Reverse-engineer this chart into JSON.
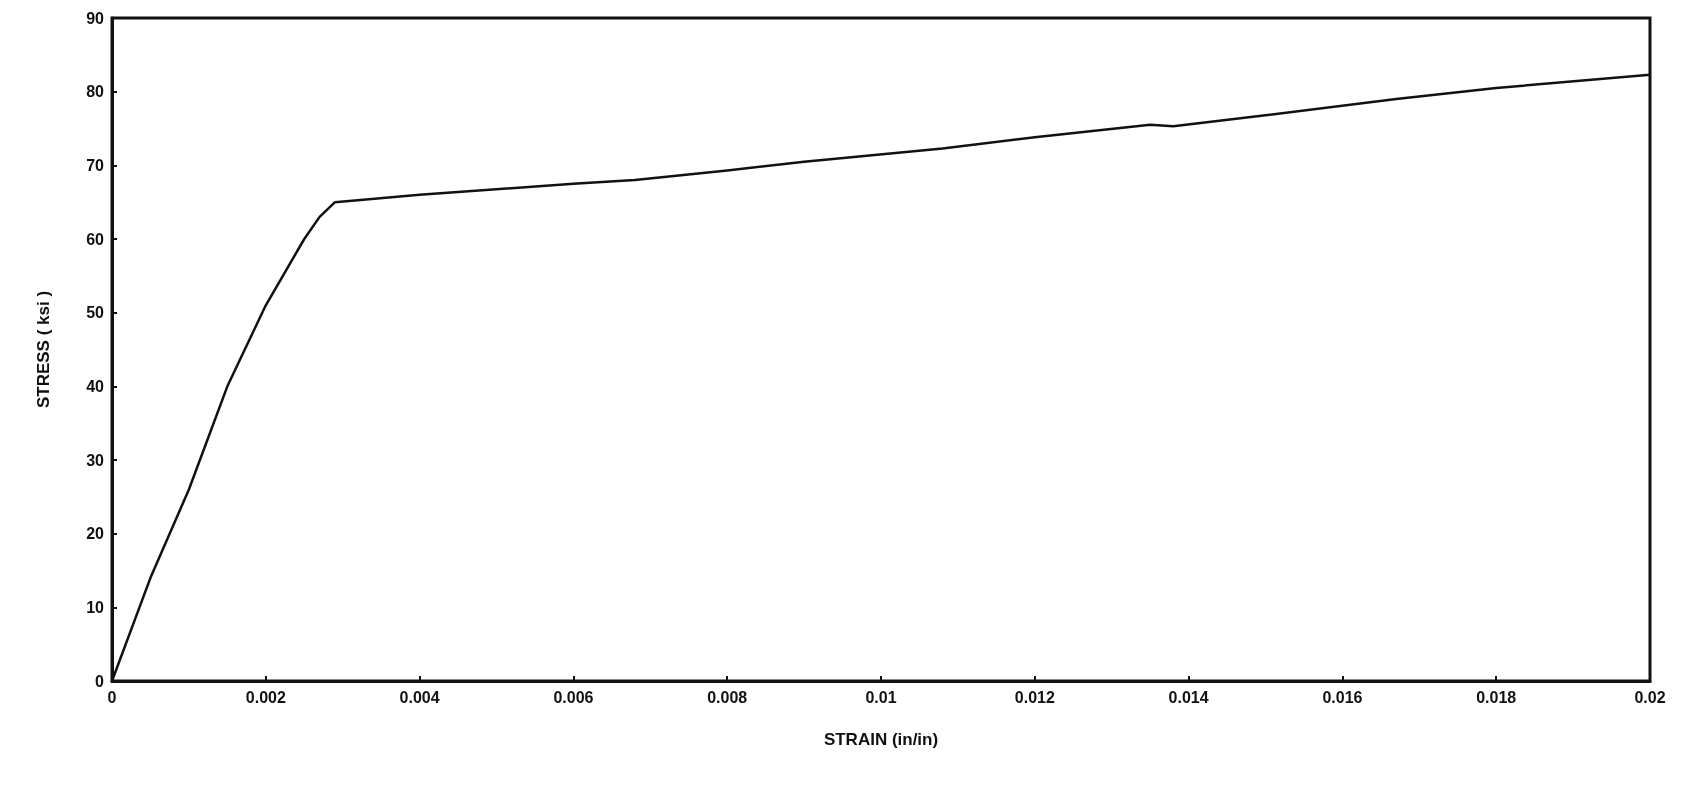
{
  "chart_data": {
    "type": "line",
    "xlabel": "STRAIN (in/in)",
    "ylabel": "STRESS ( ksi )",
    "series": [
      {
        "color": "#111111",
        "x": [
          0,
          0.0005,
          0.001,
          0.0015,
          0.002,
          0.0025,
          0.0027,
          0.0029,
          0.004,
          0.006,
          0.0068,
          0.008,
          0.009,
          0.0108,
          0.012,
          0.0135,
          0.0138,
          0.015,
          0.0167,
          0.018,
          0.02
        ],
        "values": [
          0,
          14,
          26,
          40,
          51,
          60,
          63,
          65,
          66,
          67.5,
          68,
          69.3,
          70.5,
          72.3,
          73.8,
          75.5,
          75.3,
          76.8,
          79,
          80.5,
          82.3
        ]
      }
    ],
    "xlim": [
      0,
      0.02
    ],
    "xticks": [
      0,
      0.002,
      0.004,
      0.006,
      0.008,
      0.01,
      0.012,
      0.014,
      0.016,
      0.018,
      0.02
    ],
    "ylim": [
      0,
      90
    ],
    "yticks": [
      0,
      10,
      20,
      30,
      40,
      50,
      60,
      70,
      80,
      90
    ],
    "grid": false,
    "marker": "none",
    "line_style": "solid"
  }
}
